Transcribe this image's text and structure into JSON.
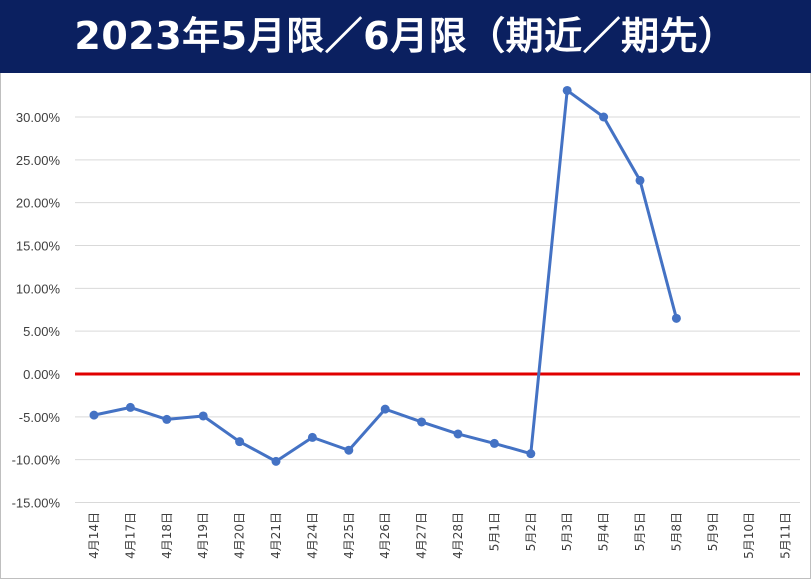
{
  "chart_data": {
    "type": "line",
    "title": "2023年5月限／6月限（期近／期先）",
    "categories": [
      "4月14日",
      "4月17日",
      "4月18日",
      "4月19日",
      "4月20日",
      "4月21日",
      "4月24日",
      "4月25日",
      "4月26日",
      "4月27日",
      "4月28日",
      "5月1日",
      "5月2日",
      "5月3日",
      "5月4日",
      "5月5日",
      "5月8日",
      "5月9日",
      "5月10日",
      "5月11日"
    ],
    "series": [
      {
        "values": [
          -4.8,
          -3.9,
          -5.3,
          -4.9,
          -7.9,
          -10.2,
          -7.4,
          -8.9,
          -4.1,
          -5.6,
          -7.0,
          -8.1,
          -9.3,
          33.1,
          30.0,
          22.6,
          6.5,
          null,
          null,
          null
        ]
      }
    ],
    "yticks": [
      "30.00%",
      "25.00%",
      "20.00%",
      "15.00%",
      "10.00%",
      "5.00%",
      "0.00%",
      "-5.00%",
      "-10.00%",
      "-15.00%"
    ],
    "ylim": [
      -15,
      33
    ],
    "grid": true,
    "zero_line": true,
    "colors": {
      "line": "#4472c4",
      "zero": "#e00000",
      "title_bg": "#0b2060",
      "grid": "#d9d9d9"
    }
  }
}
